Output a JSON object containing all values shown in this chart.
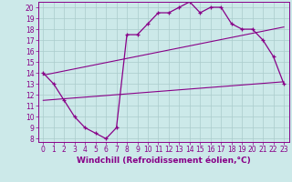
{
  "xlabel": "Windchill (Refroidissement éolien,°C)",
  "xlim": [
    -0.5,
    23.5
  ],
  "ylim": [
    7.7,
    20.5
  ],
  "yticks": [
    8,
    9,
    10,
    11,
    12,
    13,
    14,
    15,
    16,
    17,
    18,
    19,
    20
  ],
  "xticks": [
    0,
    1,
    2,
    3,
    4,
    5,
    6,
    7,
    8,
    9,
    10,
    11,
    12,
    13,
    14,
    15,
    16,
    17,
    18,
    19,
    20,
    21,
    22,
    23
  ],
  "bg_color": "#cce9e9",
  "line_color": "#880088",
  "grid_color": "#aacccc",
  "main_x": [
    0,
    1,
    2,
    3,
    4,
    5,
    6,
    7,
    8,
    9,
    10,
    11,
    12,
    13,
    14,
    15,
    16,
    17,
    18,
    19,
    20,
    21,
    22,
    23
  ],
  "main_y": [
    14,
    13,
    11.5,
    10,
    9,
    8.5,
    8,
    9,
    17.5,
    17.5,
    18.5,
    19.5,
    19.5,
    20,
    20.5,
    19.5,
    20,
    20,
    18.5,
    18,
    18,
    17,
    15.5,
    13
  ],
  "line1_x": [
    0,
    23
  ],
  "line1_y": [
    11.5,
    13.2
  ],
  "line2_x": [
    0,
    23
  ],
  "line2_y": [
    13.8,
    18.2
  ],
  "tick_fontsize": 5.5,
  "label_fontsize": 6.5
}
